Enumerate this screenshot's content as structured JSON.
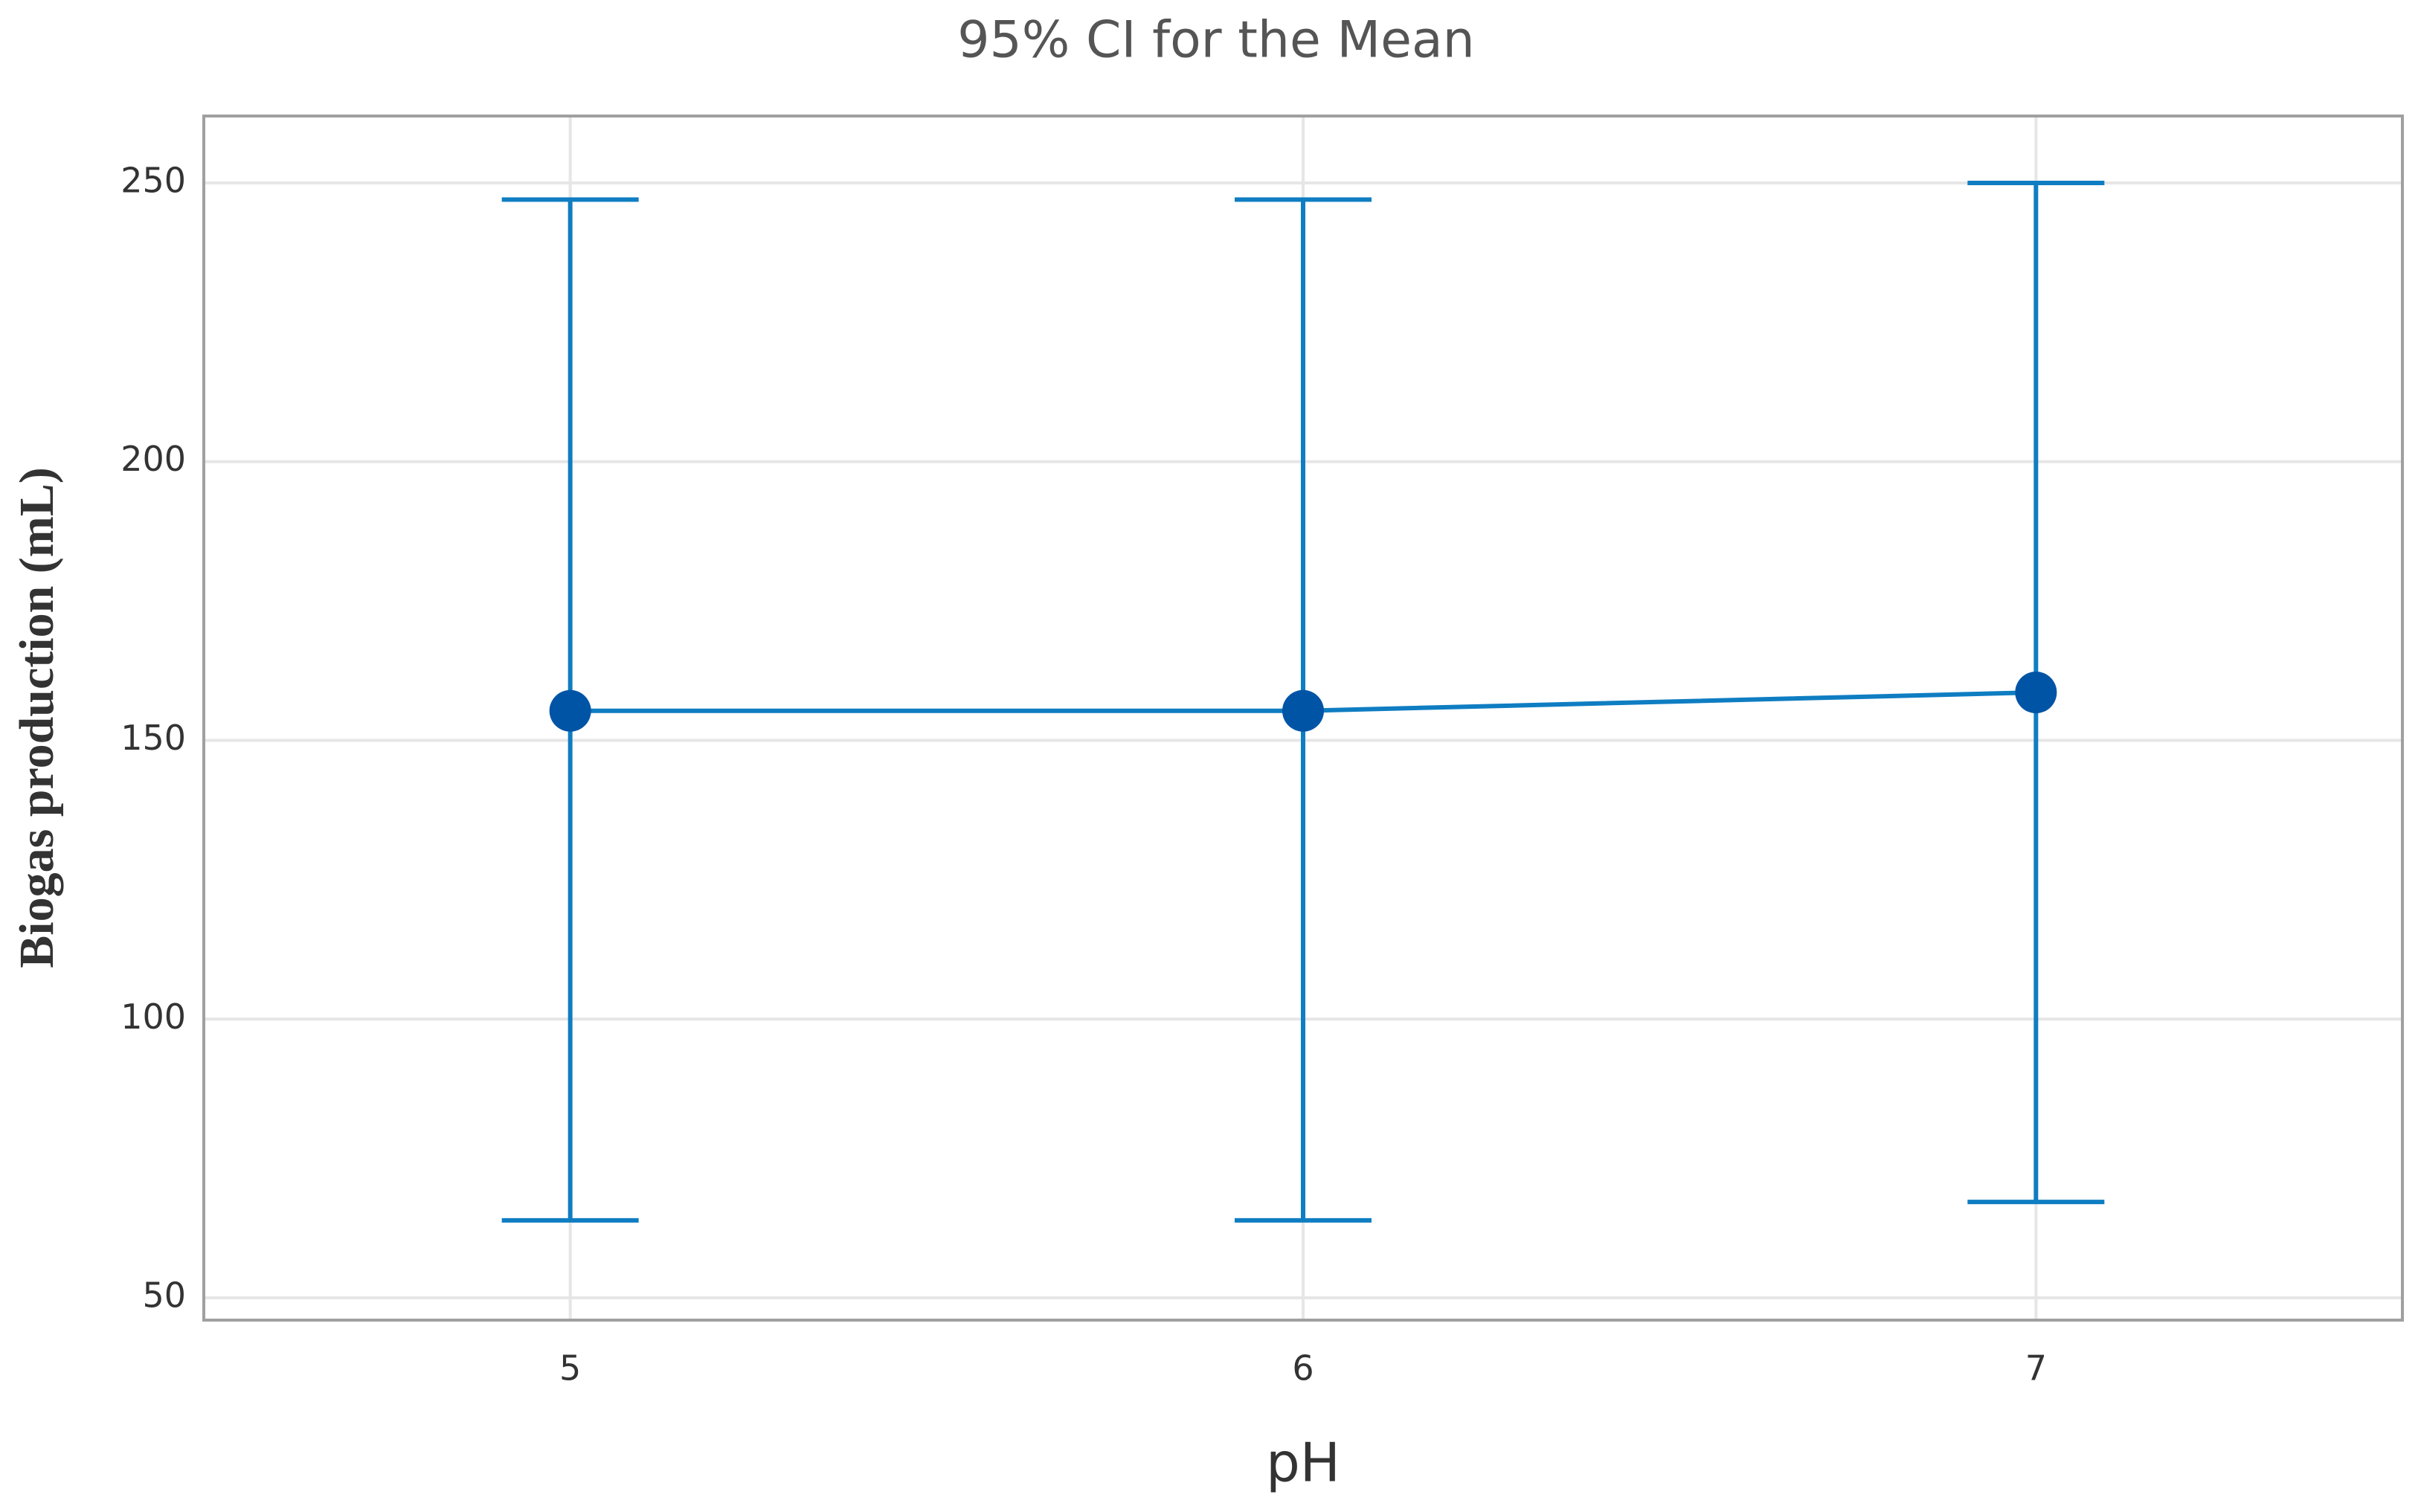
{
  "chart_data": {
    "type": "interval",
    "title": "95% CI for the Mean",
    "x_label": "pH",
    "y_label": "Biogas production (mL)",
    "categories": [
      "5",
      "6",
      "7"
    ],
    "values": [
      155.3,
      155.3,
      158.6
    ],
    "ci_lower": [
      63.9,
      63.9,
      67.2
    ],
    "ci_upper": [
      247,
      247,
      250
    ],
    "color": "#0f7dc2",
    "point_color": "#0054a6",
    "ylim": [
      46,
      262
    ],
    "yticks": [
      50,
      100,
      150,
      200,
      250
    ],
    "grid": true
  }
}
